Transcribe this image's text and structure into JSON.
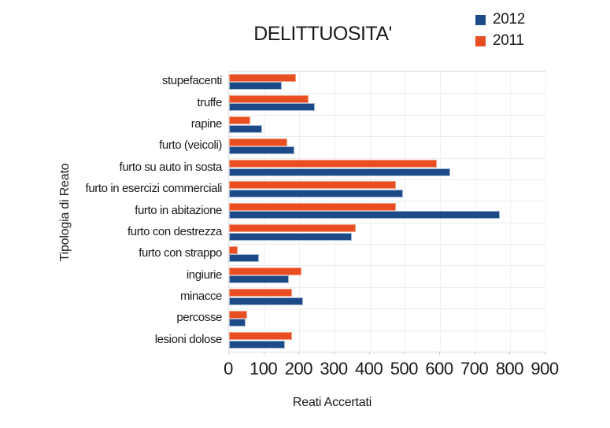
{
  "title": "DELITTUOSITA'",
  "legend": {
    "items": [
      {
        "label": "2012",
        "color": "#1c4a87"
      },
      {
        "label": "2011",
        "color": "#e94e22"
      }
    ]
  },
  "axes": {
    "x_title": "Reati Accertati",
    "y_title": "Tipologia di Reato"
  },
  "colors": {
    "bar_2012": "#1c4a87",
    "bar_2012_border": "#a2b8d2",
    "bar_2011": "#e94e22",
    "bar_2011_border": "#f4a183",
    "gridline": "#ececec",
    "text": "#1a1a1a"
  },
  "chart_data": {
    "type": "bar",
    "orientation": "horizontal",
    "title": "DELITTUOSITA'",
    "xlabel": "Reati Accertati",
    "ylabel": "Tipologia di Reato",
    "xlim": [
      0,
      900
    ],
    "x_ticks": [
      0,
      100,
      200,
      300,
      400,
      500,
      600,
      700,
      800,
      900
    ],
    "grid": true,
    "legend_position": "top-right",
    "group_order_top_to_bottom": [
      "2011",
      "2012"
    ],
    "categories": [
      "stupefacenti",
      "truffe",
      "rapine",
      "furto (veicoli)",
      "furto su auto in sosta",
      "furto in esercizi commerciali",
      "furto in abitazione",
      "furto con destrezza",
      "furto con strappo",
      "ingiurie",
      "minacce",
      "percosse",
      "lesioni dolose"
    ],
    "series": [
      {
        "name": "2012",
        "color": "#1c4a87",
        "values": [
          150,
          245,
          95,
          185,
          630,
          495,
          770,
          350,
          85,
          170,
          210,
          48,
          160
        ]
      },
      {
        "name": "2011",
        "color": "#e94e22",
        "values": [
          190,
          225,
          60,
          165,
          590,
          475,
          475,
          360,
          25,
          205,
          180,
          52,
          180
        ]
      }
    ]
  }
}
